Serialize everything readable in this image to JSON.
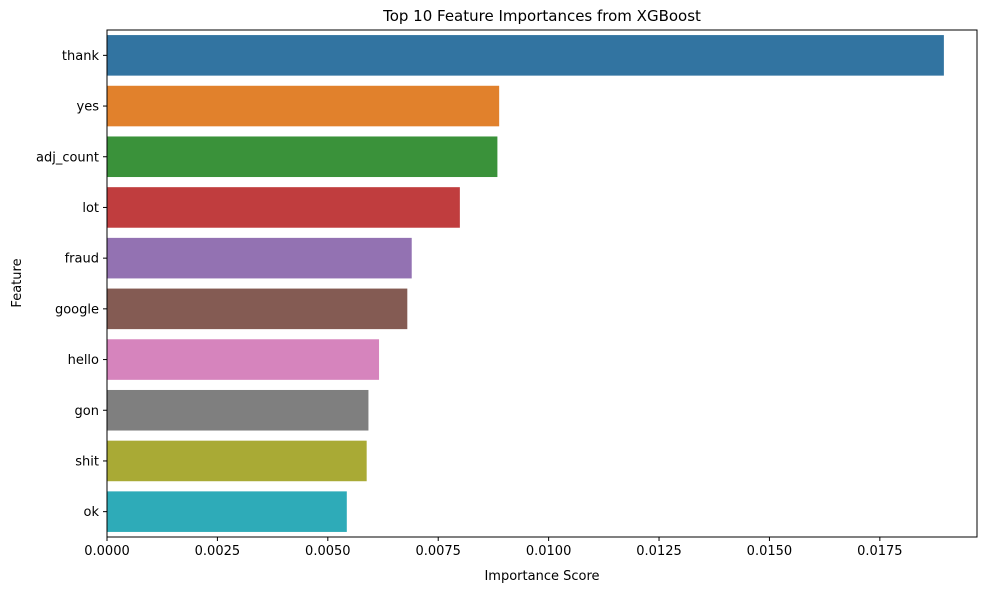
{
  "chart_data": {
    "type": "bar",
    "orientation": "horizontal",
    "title": "Top 10 Feature Importances from XGBoost",
    "xlabel": "Importance Score",
    "ylabel": "Feature",
    "categories": [
      "thank",
      "yes",
      "adj_count",
      "lot",
      "fraud",
      "google",
      "hello",
      "gon",
      "shit",
      "ok"
    ],
    "values": [
      0.01895,
      0.00888,
      0.00884,
      0.00799,
      0.0069,
      0.0068,
      0.00616,
      0.00592,
      0.00588,
      0.00543
    ],
    "colors": [
      "#3274a1",
      "#e1812c",
      "#3a923a",
      "#c03d3e",
      "#9372b2",
      "#845b53",
      "#d684bd",
      "#7f7f7f",
      "#a9aa35",
      "#2eabb8"
    ],
    "xlim": [
      0,
      0.0197
    ],
    "xticks": [
      "0.0000",
      "0.0025",
      "0.0050",
      "0.0075",
      "0.0100",
      "0.0125",
      "0.0150",
      "0.0175"
    ],
    "grid": false,
    "legend": "none"
  }
}
